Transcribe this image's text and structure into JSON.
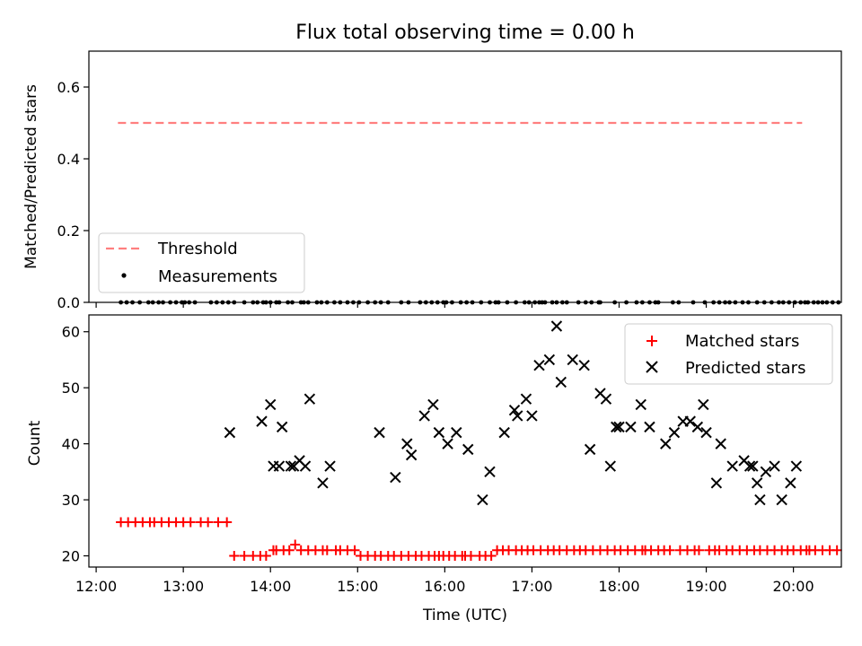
{
  "title": "Flux total observing time = 0.00 h",
  "chart_data": [
    {
      "type": "scatter",
      "title": "Flux total observing time = 0.00 h",
      "xlabel": "",
      "ylabel": "Matched/Predicted stars",
      "xlim": [
        "11:55",
        "20:33"
      ],
      "ylim": [
        0,
        0.7
      ],
      "yticks": [
        0.0,
        0.2,
        0.4,
        0.6
      ],
      "ytick_labels": [
        "0.0",
        "0.2",
        "0.4",
        "0.6"
      ],
      "grid": false,
      "legend": {
        "position": "lower-left",
        "entries": [
          "Threshold",
          "Measurements"
        ]
      },
      "threshold": {
        "name": "Threshold",
        "value": 0.5,
        "x_range": [
          "12:15",
          "20:06"
        ],
        "color": "#ff7f7f",
        "style": "dashed"
      },
      "series": [
        {
          "name": "Measurements",
          "color": "#000000",
          "marker": "dot",
          "x": [
            "12:17",
            "12:21",
            "12:25",
            "12:30",
            "12:36",
            "12:39",
            "12:43",
            "12:46",
            "12:51",
            "12:55",
            "12:59",
            "13:01",
            "13:04",
            "13:08",
            "13:19",
            "13:23",
            "13:27",
            "13:31",
            "13:35",
            "13:42",
            "13:48",
            "13:51",
            "13:55",
            "13:57",
            "14:00",
            "14:04",
            "14:06",
            "14:12",
            "14:15",
            "14:21",
            "14:23",
            "14:26",
            "14:32",
            "14:35",
            "14:39",
            "14:44",
            "14:48",
            "14:53",
            "14:57",
            "15:01",
            "15:07",
            "15:12",
            "15:16",
            "15:21",
            "15:30",
            "15:35",
            "15:43",
            "15:47",
            "15:51",
            "15:55",
            "15:59",
            "16:01",
            "16:05",
            "16:11",
            "16:15",
            "16:19",
            "16:25",
            "16:31",
            "16:35",
            "16:37",
            "16:43",
            "16:49",
            "16:55",
            "16:58",
            "17:02",
            "17:05",
            "17:07",
            "17:09",
            "17:14",
            "17:17",
            "17:21",
            "17:24",
            "17:32",
            "17:37",
            "17:41",
            "17:46",
            "17:47",
            "17:57",
            "18:05",
            "18:12",
            "18:16",
            "18:21",
            "18:25",
            "18:27",
            "18:37",
            "18:41",
            "18:51",
            "18:59",
            "19:05",
            "19:09",
            "19:13",
            "19:16",
            "19:20",
            "19:25",
            "19:29",
            "19:35",
            "19:40",
            "19:45",
            "19:50",
            "19:53",
            "19:57",
            "20:01",
            "20:05",
            "20:08",
            "20:10",
            "20:14",
            "20:17",
            "20:20",
            "20:23",
            "20:27",
            "20:31"
          ],
          "y": [
            0,
            0,
            0,
            0,
            0,
            0,
            0,
            0,
            0,
            0,
            0,
            0,
            0,
            0,
            0,
            0,
            0,
            0,
            0,
            0,
            0,
            0,
            0,
            0,
            0,
            0,
            0,
            0,
            0,
            0,
            0,
            0,
            0,
            0,
            0,
            0,
            0,
            0,
            0,
            0,
            0,
            0,
            0,
            0,
            0,
            0,
            0,
            0,
            0,
            0,
            0,
            0,
            0,
            0,
            0,
            0,
            0,
            0,
            0,
            0,
            0,
            0,
            0,
            0,
            0,
            0,
            0,
            0,
            0,
            0,
            0,
            0,
            0,
            0,
            0,
            0,
            0,
            0,
            0,
            0,
            0,
            0,
            0,
            0,
            0,
            0,
            0,
            0,
            0,
            0,
            0,
            0,
            0,
            0,
            0,
            0,
            0,
            0,
            0,
            0,
            0,
            0,
            0,
            0,
            0,
            0,
            0,
            0,
            0,
            0,
            0
          ]
        }
      ]
    },
    {
      "type": "scatter",
      "title": "",
      "xlabel": "Time (UTC)",
      "ylabel": "Count",
      "xlim": [
        "11:55",
        "20:33"
      ],
      "ylim": [
        18,
        63
      ],
      "xticks": [
        "12:00",
        "13:00",
        "14:00",
        "15:00",
        "16:00",
        "17:00",
        "18:00",
        "19:00",
        "20:00"
      ],
      "yticks": [
        20,
        30,
        40,
        50,
        60
      ],
      "grid": false,
      "legend": {
        "position": "top-right",
        "entries": [
          "Matched stars",
          "Predicted stars"
        ]
      },
      "series": [
        {
          "name": "Matched stars",
          "color": "#ff0000",
          "marker": "plus",
          "x": [
            "12:17",
            "12:22",
            "12:27",
            "12:32",
            "12:37",
            "12:40",
            "12:45",
            "12:50",
            "12:55",
            "13:00",
            "13:05",
            "13:12",
            "13:17",
            "13:24",
            "13:30",
            "13:35",
            "13:42",
            "13:48",
            "13:53",
            "13:57",
            "14:02",
            "14:04",
            "14:09",
            "14:13",
            "14:17",
            "14:21",
            "14:26",
            "14:31",
            "14:36",
            "14:39",
            "14:45",
            "14:48",
            "14:53",
            "14:58",
            "15:02",
            "15:07",
            "15:12",
            "15:16",
            "15:21",
            "15:25",
            "15:30",
            "15:35",
            "15:40",
            "15:44",
            "15:49",
            "15:53",
            "15:56",
            "15:59",
            "16:03",
            "16:07",
            "16:12",
            "16:14",
            "16:18",
            "16:24",
            "16:28",
            "16:32",
            "16:36",
            "16:40",
            "16:44",
            "16:49",
            "16:53",
            "16:57",
            "17:01",
            "17:06",
            "17:11",
            "17:15",
            "17:19",
            "17:24",
            "17:29",
            "17:33",
            "17:37",
            "17:42",
            "17:47",
            "17:52",
            "17:57",
            "18:01",
            "18:06",
            "18:11",
            "18:16",
            "18:18",
            "18:22",
            "18:27",
            "18:31",
            "18:35",
            "18:42",
            "18:47",
            "18:52",
            "18:55",
            "19:02",
            "19:06",
            "19:09",
            "19:14",
            "19:18",
            "19:23",
            "19:28",
            "19:33",
            "19:37",
            "19:42",
            "19:47",
            "19:52",
            "19:56",
            "20:00",
            "20:05",
            "20:09",
            "20:11",
            "20:15",
            "20:20",
            "20:25",
            "20:30"
          ],
          "y": [
            26,
            26,
            26,
            26,
            26,
            26,
            26,
            26,
            26,
            26,
            26,
            26,
            26,
            26,
            26,
            20,
            20,
            20,
            20,
            20,
            21,
            21,
            21,
            21,
            22,
            21,
            21,
            21,
            21,
            21,
            21,
            21,
            21,
            21,
            20,
            20,
            20,
            20,
            20,
            20,
            20,
            20,
            20,
            20,
            20,
            20,
            20,
            20,
            20,
            20,
            20,
            20,
            20,
            20,
            20,
            20,
            21,
            21,
            21,
            21,
            21,
            21,
            21,
            21,
            21,
            21,
            21,
            21,
            21,
            21,
            21,
            21,
            21,
            21,
            21,
            21,
            21,
            21,
            21,
            21,
            21,
            21,
            21,
            21,
            21,
            21,
            21,
            21,
            21,
            21,
            21,
            21,
            21,
            21,
            21,
            21,
            21,
            21,
            21,
            21,
            21,
            21,
            21,
            21,
            21,
            21,
            21,
            21,
            21
          ]
        },
        {
          "name": "Predicted stars",
          "color": "#000000",
          "marker": "x",
          "x": [
            "13:32",
            "13:54",
            "14:00",
            "14:02",
            "14:06",
            "14:08",
            "14:14",
            "14:16",
            "14:20",
            "14:24",
            "14:27",
            "14:36",
            "14:41",
            "15:15",
            "15:26",
            "15:34",
            "15:37",
            "15:46",
            "15:52",
            "15:56",
            "16:02",
            "16:08",
            "16:16",
            "16:26",
            "16:31",
            "16:41",
            "16:48",
            "16:50",
            "16:56",
            "17:00",
            "17:05",
            "17:12",
            "17:17",
            "17:20",
            "17:28",
            "17:36",
            "17:40",
            "17:47",
            "17:51",
            "17:54",
            "17:58",
            "18:00",
            "18:08",
            "18:15",
            "18:21",
            "18:32",
            "18:38",
            "18:44",
            "18:49",
            "18:54",
            "18:58",
            "19:00",
            "19:07",
            "19:10",
            "19:18",
            "19:26",
            "19:30",
            "19:32",
            "19:35",
            "19:37",
            "19:41",
            "19:47",
            "19:52",
            "19:58",
            "20:02"
          ],
          "y": [
            42,
            44,
            47,
            36,
            36,
            43,
            36,
            36,
            37,
            36,
            48,
            33,
            36,
            42,
            34,
            40,
            38,
            45,
            47,
            42,
            40,
            42,
            39,
            30,
            35,
            42,
            46,
            45,
            48,
            45,
            54,
            55,
            61,
            51,
            55,
            54,
            39,
            49,
            48,
            36,
            43,
            43,
            43,
            47,
            43,
            40,
            42,
            44,
            44,
            43,
            47,
            42,
            33,
            40,
            36,
            37,
            36,
            36,
            33,
            30,
            35,
            36,
            30,
            33,
            36
          ]
        }
      ]
    }
  ]
}
